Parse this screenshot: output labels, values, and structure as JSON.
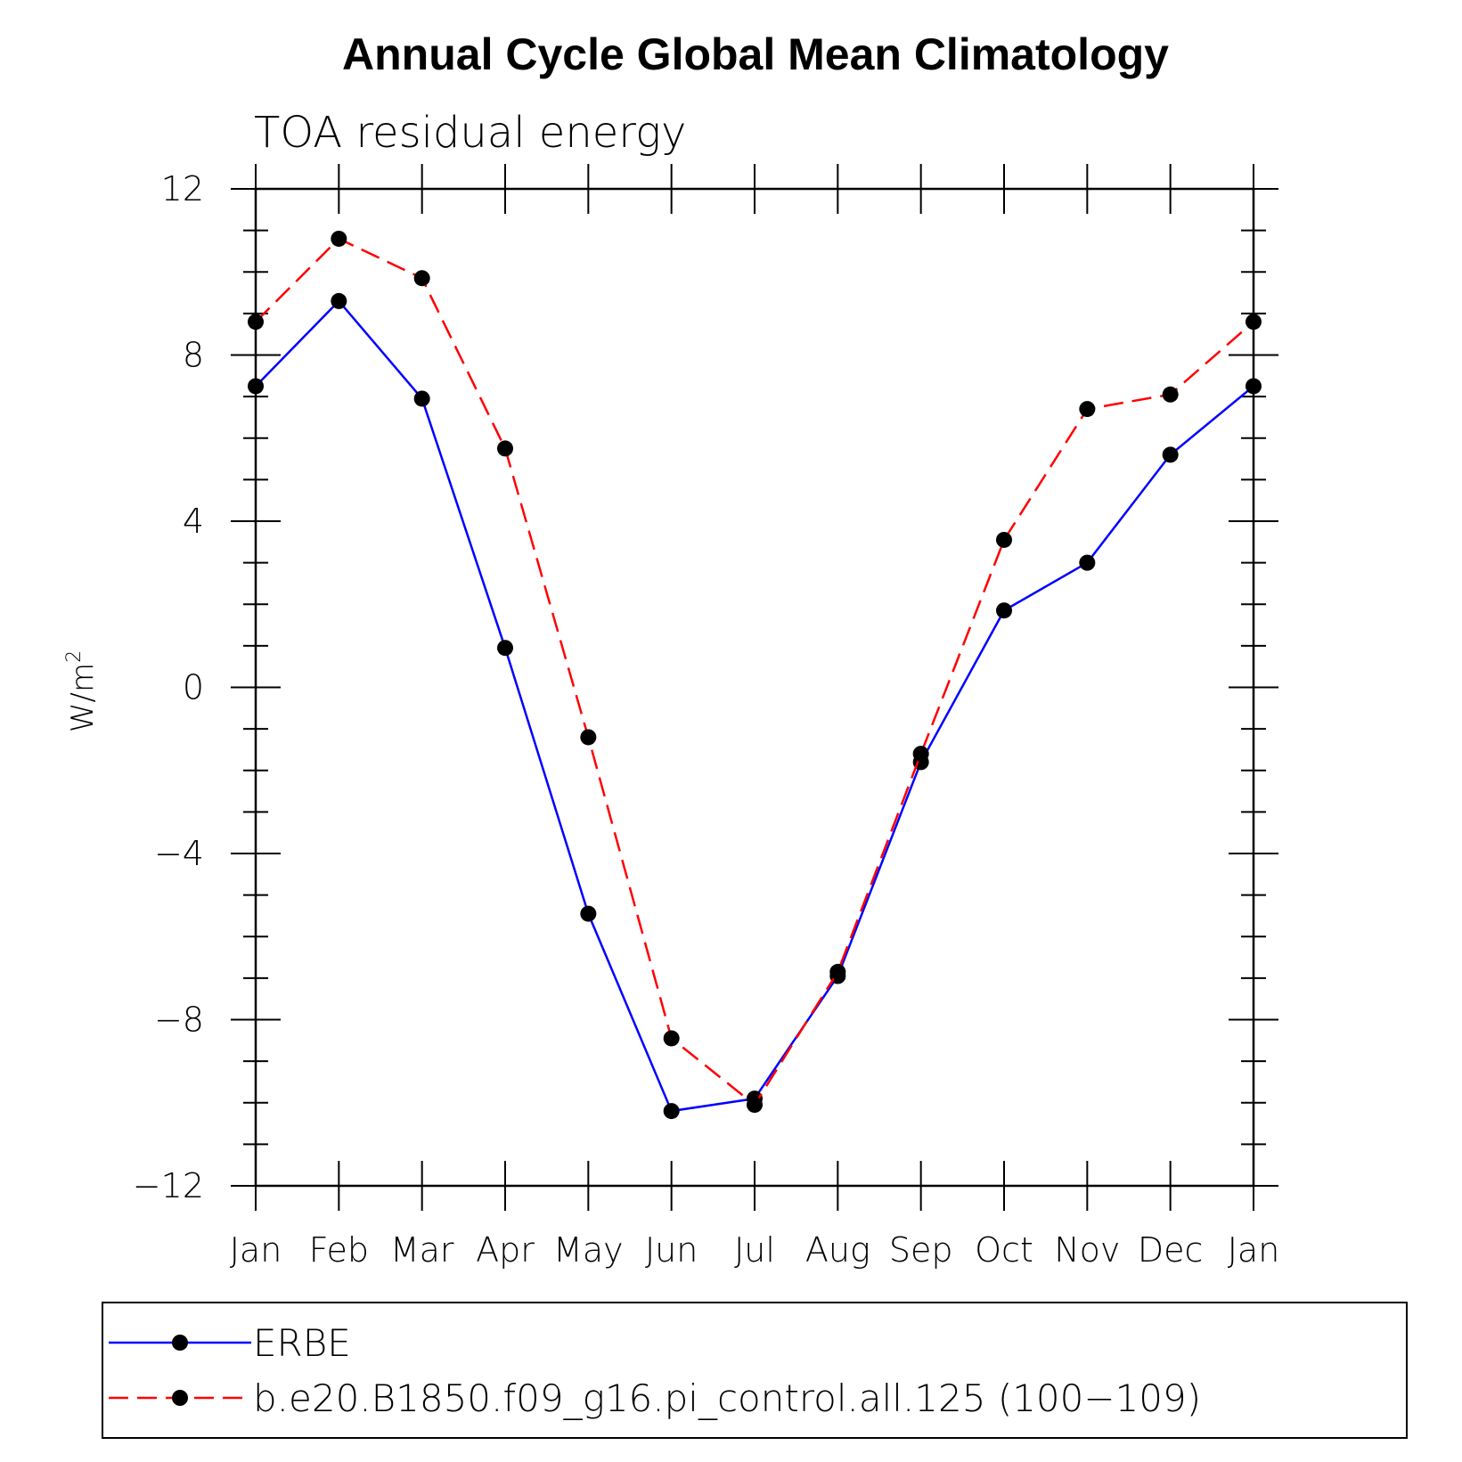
{
  "chart_data": {
    "type": "line",
    "title": "Annual Cycle Global Mean Climatology",
    "subtitle": "TOA residual energy",
    "ylabel": "W/m",
    "ylabel_superscript": "2",
    "xlabel": "",
    "ylim": [
      -12,
      12
    ],
    "yticks": [
      "12",
      "8",
      "4",
      "0",
      "−4",
      "−8",
      "−12"
    ],
    "categories": [
      "Jan",
      "Feb",
      "Mar",
      "Apr",
      "May",
      "Jun",
      "Jul",
      "Aug",
      "Sep",
      "Oct",
      "Nov",
      "Dec",
      "Jan"
    ],
    "series": [
      {
        "name": "ERBE",
        "color": "#0000ff",
        "line_style": "solid",
        "marker": "filled-circle",
        "values": [
          7.25,
          9.3,
          6.95,
          0.95,
          -5.45,
          -10.2,
          -9.9,
          -6.95,
          -1.8,
          1.85,
          3.0,
          5.6,
          7.25
        ]
      },
      {
        "name": "b.e20.B1850.f09_g16.pi_control.all.125 (100−109)",
        "color": "#ff0000",
        "line_style": "dashed",
        "marker": "filled-circle",
        "values": [
          8.8,
          10.8,
          9.85,
          5.75,
          -1.2,
          -8.45,
          -10.05,
          -6.85,
          -1.6,
          3.55,
          6.7,
          7.05,
          8.8
        ]
      }
    ],
    "legend_position": "bottom",
    "grid": false
  }
}
